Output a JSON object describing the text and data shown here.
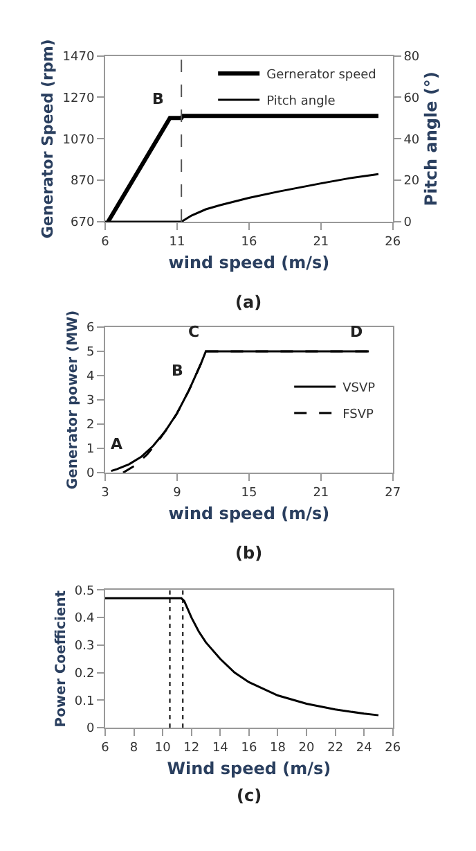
{
  "chart_data": [
    {
      "type": "line",
      "xlabel": "wind speed (m/s)",
      "ylabel": "Generator Speed (rpm)",
      "y2label": "Pitch angle (°)",
      "xlim": [
        6,
        26
      ],
      "xticks": [
        6,
        11,
        16,
        21,
        26
      ],
      "ylim": [
        670,
        1470
      ],
      "yticks": [
        670,
        870,
        1070,
        1270,
        1470
      ],
      "y2lim": [
        0,
        80
      ],
      "y2ticks": [
        0,
        20,
        40,
        60,
        80
      ],
      "legend": "top right",
      "marker": "none",
      "series": [
        {
          "name": "Gernerator speed",
          "color": "#000000",
          "x": [
            6.2,
            10.5,
            11.3,
            11.4,
            25
          ],
          "values": [
            670,
            1170,
            1170,
            1180,
            1180
          ]
        },
        {
          "name": "Pitch angle",
          "color": "#000000",
          "axis": "y2",
          "x": [
            6,
            11.3,
            12,
            13,
            14,
            16,
            18,
            21,
            23,
            25
          ],
          "values": [
            0,
            0,
            3,
            6,
            8,
            11.5,
            14.5,
            18.5,
            21,
            23
          ]
        }
      ],
      "ref_lines": [
        {
          "axis": "x",
          "value": 11.3,
          "color": "#555555",
          "line_style": "dashed"
        }
      ],
      "annotations": [
        {
          "text": "B",
          "x": 10.5,
          "y": 1170
        },
        "(a)"
      ]
    },
    {
      "type": "line",
      "xlabel": "wind speed (m/s)",
      "ylabel": "Generator power (MW)",
      "xlim": [
        3,
        27
      ],
      "xticks": [
        3,
        9,
        15,
        21,
        27
      ],
      "ylim": [
        0,
        6
      ],
      "yticks": [
        0,
        1,
        2,
        3,
        4,
        5,
        6
      ],
      "legend": "right",
      "marker": "none",
      "series": [
        {
          "name": "VSVP",
          "color": "#000000",
          "line_style": "solid",
          "x": [
            3.5,
            4,
            5,
            6,
            7,
            8,
            9,
            10,
            11,
            11.4,
            25
          ],
          "values": [
            0.07,
            0.15,
            0.35,
            0.65,
            1.1,
            1.7,
            2.45,
            3.4,
            4.5,
            5,
            5
          ]
        },
        {
          "name": "FSVP",
          "color": "#000000",
          "line_style": "dashed",
          "x": [
            4.5,
            5.5,
            6.5,
            7.5,
            8.5,
            9,
            10,
            11,
            11.4,
            25
          ],
          "values": [
            0,
            0.3,
            0.75,
            1.35,
            2.05,
            2.45,
            3.4,
            4.5,
            5,
            5
          ]
        }
      ],
      "annotations": [
        {
          "text": "A",
          "x": 5,
          "y": 0.35
        },
        {
          "text": "B",
          "x": 10,
          "y": 3.4
        },
        {
          "text": "C",
          "x": 11.4,
          "y": 5
        },
        {
          "text": "D",
          "x": 25,
          "y": 5
        },
        "(b)"
      ]
    },
    {
      "type": "line",
      "xlabel": "Wind speed (m/s)",
      "ylabel": "Power Coefficient",
      "xlim": [
        6,
        26
      ],
      "xticks": [
        6,
        8,
        10,
        12,
        14,
        16,
        18,
        20,
        22,
        24,
        26
      ],
      "ylim": [
        0,
        0.5
      ],
      "yticks": [
        0,
        0.1,
        0.2,
        0.3,
        0.4,
        0.5
      ],
      "legend": false,
      "marker": "none",
      "series": [
        {
          "color": "#000000",
          "x": [
            6,
            11.3,
            11.5,
            12,
            12.5,
            13,
            14,
            15,
            16,
            18,
            20,
            22,
            24,
            25
          ],
          "values": [
            0.47,
            0.47,
            0.46,
            0.4,
            0.35,
            0.31,
            0.25,
            0.2,
            0.165,
            0.117,
            0.087,
            0.066,
            0.051,
            0.045
          ]
        }
      ],
      "ref_lines": [
        {
          "axis": "x",
          "value": 10.5,
          "color": "#000000",
          "line_style": "dotted"
        },
        {
          "axis": "x",
          "value": 11.4,
          "color": "#000000",
          "line_style": "dotted"
        }
      ],
      "annotations": [
        "(c)"
      ]
    }
  ]
}
